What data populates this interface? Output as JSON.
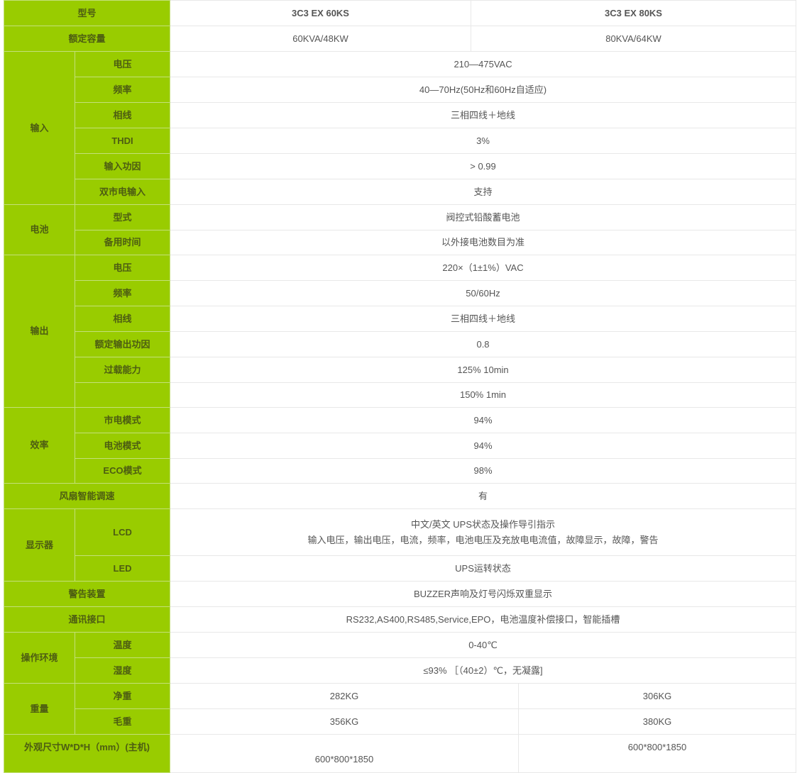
{
  "header": {
    "label": "型号",
    "model_a": "3C3 EX 60KS",
    "model_b": "3C3 EX 80KS"
  },
  "capacity": {
    "label": "额定容量",
    "a": "60KVA/48KW",
    "b": "80KVA/64KW"
  },
  "input": {
    "label": "输入",
    "rows": [
      {
        "label": "电压",
        "value": "210—475VAC"
      },
      {
        "label": "频率",
        "value": "40—70Hz(50Hz和60Hz自适应)"
      },
      {
        "label": "相线",
        "value": "三相四线＋地线"
      },
      {
        "label": "THDI",
        "value": "3%"
      },
      {
        "label": "输入功因",
        "value": "> 0.99"
      },
      {
        "label": "双市电输入",
        "value": "支持"
      }
    ]
  },
  "battery": {
    "label": "电池",
    "rows": [
      {
        "label": "型式",
        "value": "阀控式铅酸蓄电池"
      },
      {
        "label": "备用时间",
        "value": "以外接电池数目为准"
      }
    ]
  },
  "output": {
    "label": "输出",
    "rows": [
      {
        "label": "电压",
        "value": "220×（1±1%）VAC"
      },
      {
        "label": "频率",
        "value": "50/60Hz"
      },
      {
        "label": "相线",
        "value": "三相四线＋地线"
      },
      {
        "label": "额定输出功因",
        "value": "0.8"
      },
      {
        "label": "过载能力",
        "value": "125% 10min"
      },
      {
        "label": "",
        "value": "150% 1min"
      }
    ]
  },
  "efficiency": {
    "label": "效率",
    "rows": [
      {
        "label": "市电模式",
        "value": "94%"
      },
      {
        "label": "电池模式",
        "value": "94%"
      },
      {
        "label": "ECO模式",
        "value": "98%"
      }
    ]
  },
  "fan": {
    "label": "风扇智能调速",
    "value": "有"
  },
  "display": {
    "label": "显示器",
    "lcd_label": "LCD",
    "lcd_line1": "中文/英文 UPS状态及操作导引指示",
    "lcd_line2": "输入电压，输出电压，电流，频率，电池电压及充放电电流值，故障显示，故障，警告",
    "led_label": "LED",
    "led_value": "UPS运转状态"
  },
  "alarm": {
    "label": "警告装置",
    "value": "BUZZER声响及灯号闪烁双重显示"
  },
  "comm": {
    "label": "通讯接口",
    "value": "RS232,AS400,RS485,Service,EPO，电池温度补偿接口，智能插槽"
  },
  "environment": {
    "label": "操作环境",
    "rows": [
      {
        "label": "温度",
        "value": "0-40℃"
      },
      {
        "label": "湿度",
        "value": "≤93% ［（40±2）℃，无凝露]"
      }
    ]
  },
  "weight": {
    "label": "重量",
    "net_label": "净重",
    "net_a": "282KG",
    "net_b": "306KG",
    "gross_label": "毛重",
    "gross_a": "356KG",
    "gross_b": "380KG"
  },
  "dimensions": {
    "label": "外观尺寸W*D*H（mm）(主机)",
    "a": "600*800*1850",
    "b": "600*800*1850"
  },
  "colors": {
    "label_green": "#99cc00",
    "label_text": "#4d5d12",
    "border": "#e8e8e8",
    "value_text": "#555555"
  }
}
